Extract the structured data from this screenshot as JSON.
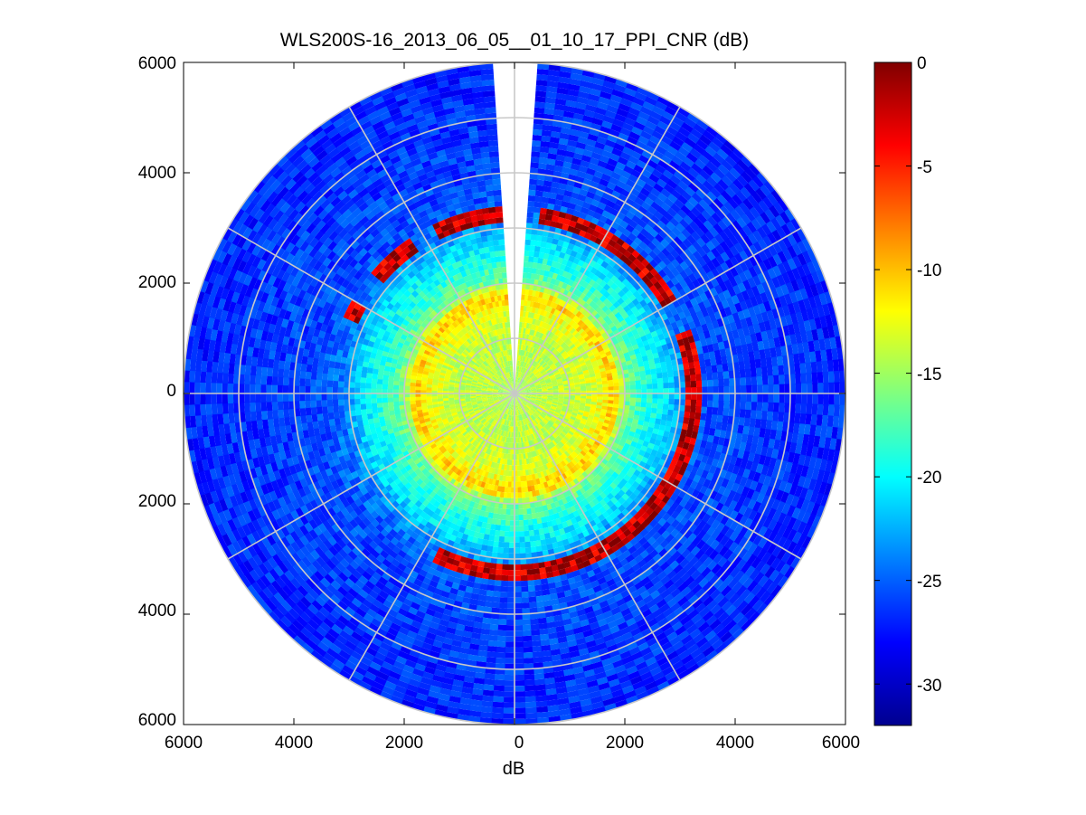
{
  "chart_data": {
    "type": "heatmap",
    "subtype": "polar PPI scan",
    "title": "WLS200S-16_2013_06_05__01_10_17_PPI_CNR (dB)",
    "xlabel": "dB",
    "ylabel": "",
    "xlim": [
      -6000,
      6000
    ],
    "ylim": [
      -6000,
      6000
    ],
    "x_tick_labels": [
      "6000",
      "4000",
      "2000",
      "0",
      "2000",
      "4000",
      "6000"
    ],
    "y_tick_labels": [
      "6000",
      "4000",
      "2000",
      "0",
      "2000",
      "4000",
      "6000"
    ],
    "x_tick_values": [
      -6000,
      -4000,
      -2000,
      0,
      2000,
      4000,
      6000
    ],
    "y_tick_values": [
      6000,
      4000,
      2000,
      0,
      -2000,
      -4000,
      -6000
    ],
    "grid_rings_m": [
      1000,
      2000,
      3000,
      4000,
      5000,
      6000
    ],
    "grid_spokes_deg": [
      0,
      30,
      60,
      90,
      120,
      150,
      180,
      210,
      240,
      270,
      300,
      330
    ],
    "max_range_m": 6000,
    "blank_sector_deg": [
      -4,
      4
    ],
    "colorbar": {
      "min": -32,
      "max": 0,
      "tick_values": [
        0,
        -5,
        -10,
        -15,
        -20,
        -25,
        -30
      ],
      "tick_labels": [
        "0",
        "-5",
        "-10",
        "-15",
        "-20",
        "-25",
        "-30"
      ],
      "colormap": "jet"
    },
    "range_profile": {
      "range_m": [
        0,
        500,
        1000,
        1500,
        1800,
        2000,
        2400,
        2800,
        3100,
        3500,
        4000,
        5000,
        6000
      ],
      "cnr_db": [
        -15,
        -14,
        -14,
        -13,
        -10,
        -16,
        -19,
        -21,
        -24,
        -25.5,
        -26,
        -26.5,
        -27
      ]
    },
    "hard_target_arc": {
      "range_m": [
        3150,
        3350
      ],
      "cnr_db": -2,
      "azimuth_segments_deg": [
        [
          -25,
          -3
        ],
        [
          8,
          60
        ],
        [
          70,
          155
        ],
        [
          155,
          205
        ],
        [
          295,
          300
        ],
        [
          310,
          325
        ]
      ]
    }
  }
}
